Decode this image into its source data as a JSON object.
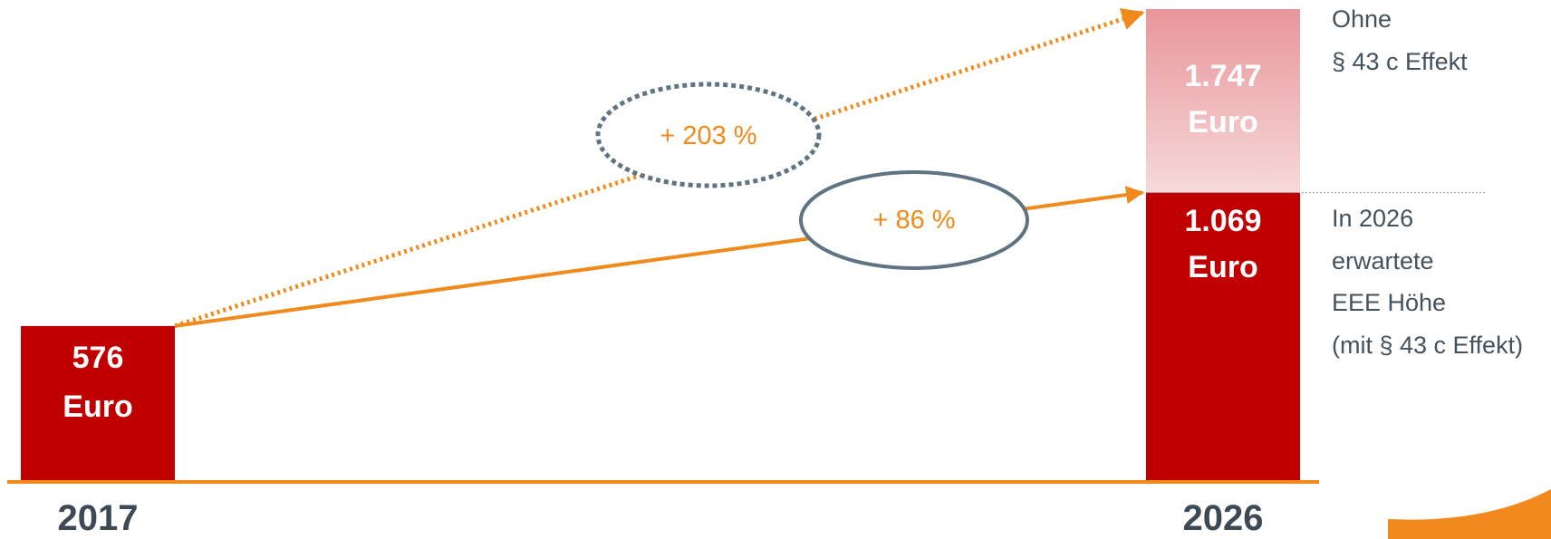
{
  "colors": {
    "bar": "#c00000",
    "bar_ghost_top": "#e8969a",
    "bar_ghost_bottom": "#f6d9da",
    "arrow": "#f08a1c",
    "ellipse": "#5f7482",
    "text_dark": "#3d4a55"
  },
  "chart_data": {
    "type": "bar",
    "categories": [
      "2017",
      "2026"
    ],
    "series": [
      {
        "values": [
          576,
          1069
        ]
      },
      {
        "values": [
          null,
          1747
        ]
      }
    ],
    "value_labels": [
      {
        "number": "576",
        "unit": "Euro"
      },
      {
        "number": "1.069",
        "unit": "Euro"
      },
      {
        "number": "1.747",
        "unit": "Euro"
      }
    ],
    "ylim": [
      0,
      1747
    ],
    "annotations": {
      "growth_dotted": "+ 203 %",
      "growth_solid": "+ 86 %",
      "note_top": [
        "Ohne",
        "§ 43 c Effekt"
      ],
      "note_bottom": [
        "In 2026",
        "erwartete",
        "EEE Höhe",
        "(mit § 43 c Effekt)"
      ]
    }
  }
}
